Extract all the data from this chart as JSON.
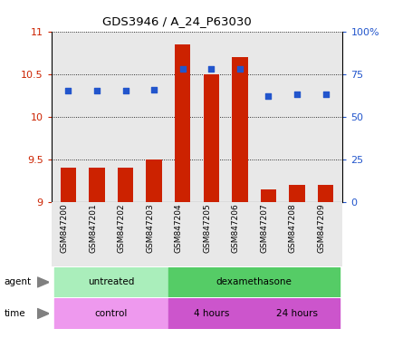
{
  "title": "GDS3946 / A_24_P63030",
  "samples": [
    "GSM847200",
    "GSM847201",
    "GSM847202",
    "GSM847203",
    "GSM847204",
    "GSM847205",
    "GSM847206",
    "GSM847207",
    "GSM847208",
    "GSM847209"
  ],
  "transformed_count": [
    9.4,
    9.4,
    9.4,
    9.5,
    10.85,
    10.5,
    10.7,
    9.15,
    9.2,
    9.2
  ],
  "percentile_rank": [
    65,
    65,
    65,
    66,
    78,
    78,
    78,
    62,
    63,
    63
  ],
  "ylim_left": [
    9.0,
    11.0
  ],
  "ylim_right": [
    0,
    100
  ],
  "yticks_left": [
    9.0,
    9.5,
    10.0,
    10.5,
    11.0
  ],
  "yticks_right": [
    0,
    25,
    50,
    75,
    100
  ],
  "bar_color": "#cc2200",
  "dot_color": "#2255cc",
  "bar_width": 0.55,
  "agent_groups": [
    {
      "label": "untreated",
      "start": 0,
      "end": 3,
      "color": "#aaeebb"
    },
    {
      "label": "dexamethasone",
      "start": 4,
      "end": 9,
      "color": "#55cc66"
    }
  ],
  "time_groups": [
    {
      "label": "control",
      "start": 0,
      "end": 3,
      "color": "#ee99ee"
    },
    {
      "label": "4 hours",
      "start": 4,
      "end": 6,
      "color": "#cc55cc"
    },
    {
      "label": "24 hours",
      "start": 7,
      "end": 9,
      "color": "#cc55cc"
    }
  ],
  "plot_bg_color": "#e8e8e8",
  "agent_label_color": "#aaeebb",
  "time_label_color": "#ee99ee"
}
